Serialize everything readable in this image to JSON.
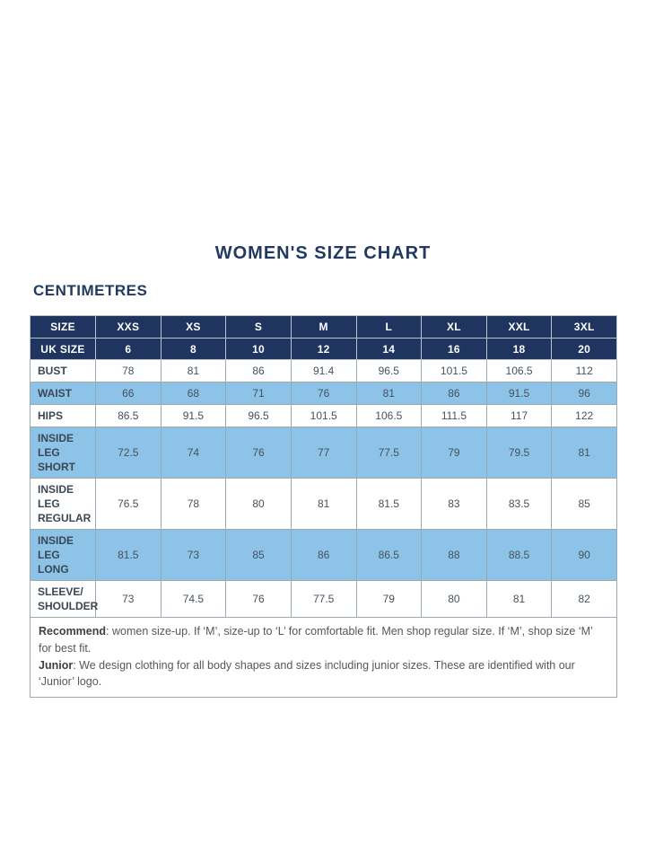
{
  "title": "WOMEN'S SIZE CHART",
  "unit_label": "CENTIMETRES",
  "chart_data": {
    "type": "table",
    "title": "WOMEN'S SIZE CHART",
    "unit": "CENTIMETRES",
    "columns": [
      "SIZE",
      "XXS",
      "XS",
      "S",
      "M",
      "L",
      "XL",
      "XXL",
      "3XL"
    ],
    "uk_size_row": {
      "label": "UK SIZE",
      "values": [
        "6",
        "8",
        "10",
        "12",
        "14",
        "16",
        "18",
        "20"
      ]
    },
    "rows": [
      {
        "label": "BUST",
        "values": [
          "78",
          "81",
          "86",
          "91.4",
          "96.5",
          "101.5",
          "106.5",
          "112"
        ]
      },
      {
        "label": "WAIST",
        "values": [
          "66",
          "68",
          "71",
          "76",
          "81",
          "86",
          "91.5",
          "96"
        ]
      },
      {
        "label": "HIPS",
        "values": [
          "86.5",
          "91.5",
          "96.5",
          "101.5",
          "106.5",
          "111.5",
          "117",
          "122"
        ]
      },
      {
        "label": "INSIDE LEG SHORT",
        "values": [
          "72.5",
          "74",
          "76",
          "77",
          "77.5",
          "79",
          "79.5",
          "81"
        ]
      },
      {
        "label": "INSIDE LEG REGULAR",
        "values": [
          "76.5",
          "78",
          "80",
          "81",
          "81.5",
          "83",
          "83.5",
          "85"
        ]
      },
      {
        "label": "INSIDE LEG LONG",
        "values": [
          "81.5",
          "73",
          "85",
          "86",
          "86.5",
          "88",
          "88.5",
          "90"
        ]
      },
      {
        "label": "SLEEVE/ SHOULDER",
        "values": [
          "73",
          "74.5",
          "76",
          "77.5",
          "79",
          "80",
          "81",
          "82"
        ]
      }
    ]
  },
  "notes": [
    {
      "lead": "Recommend",
      "text": ": women size-up. If ‘M’, size-up to ‘L’ for comfortable fit. Men shop regular size. If ‘M’, shop size ‘M’ for best fit."
    },
    {
      "lead": "Junior",
      "text": ": We design clothing for all body shapes and sizes including junior sizes. These are identified with our ‘Junior’ logo."
    }
  ],
  "colors": {
    "header_navy": "#1f3560",
    "row_light_blue": "#8cc3e6",
    "title_navy": "#223a5f",
    "body_text": "#46525c",
    "grid_border": "#9ba8b2"
  }
}
